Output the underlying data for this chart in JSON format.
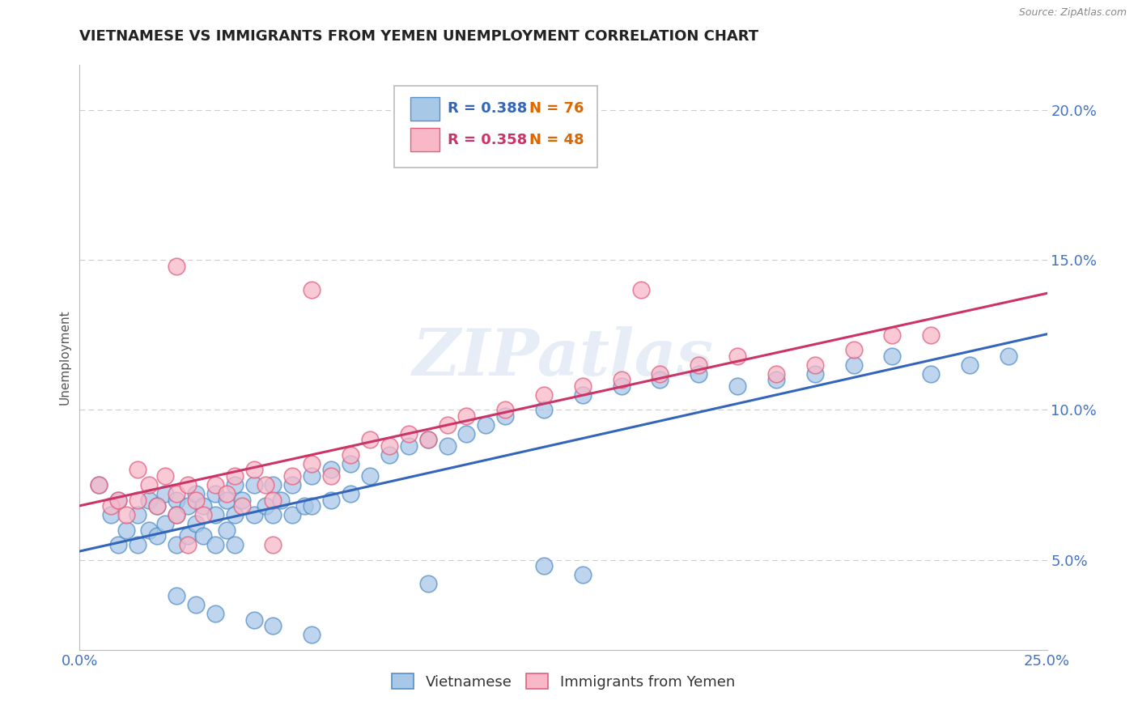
{
  "title": "VIETNAMESE VS IMMIGRANTS FROM YEMEN UNEMPLOYMENT CORRELATION CHART",
  "source_text": "Source: ZipAtlas.com",
  "ylabel": "Unemployment",
  "xlim": [
    0.0,
    0.25
  ],
  "ylim": [
    0.02,
    0.215
  ],
  "xticks": [
    0.0,
    0.05,
    0.1,
    0.15,
    0.2,
    0.25
  ],
  "xticklabels": [
    "0.0%",
    "",
    "",
    "",
    "",
    "25.0%"
  ],
  "yticks": [
    0.05,
    0.1,
    0.15,
    0.2
  ],
  "yticklabels": [
    "5.0%",
    "10.0%",
    "15.0%",
    "20.0%"
  ],
  "blue_color": "#a8c8e8",
  "blue_edge_color": "#5590c8",
  "pink_color": "#f8b8c8",
  "pink_edge_color": "#e06080",
  "blue_line_color": "#3366bb",
  "pink_line_color": "#cc3366",
  "legend_blue_R": "R = 0.388",
  "legend_blue_N": "N = 76",
  "legend_pink_R": "R = 0.358",
  "legend_pink_N": "N = 48",
  "legend_R_color_blue": "#3366bb",
  "legend_N_color": "#dd6600",
  "legend_R_color_pink": "#cc3366",
  "grid_color": "#cccccc",
  "background_color": "#ffffff",
  "title_color": "#222222",
  "axis_tick_color": "#4472c4",
  "watermark": "ZIPatlas",
  "source_color": "#888888",
  "blue_x": [
    0.005,
    0.008,
    0.01,
    0.01,
    0.012,
    0.015,
    0.015,
    0.018,
    0.018,
    0.02,
    0.02,
    0.022,
    0.022,
    0.025,
    0.025,
    0.025,
    0.028,
    0.028,
    0.03,
    0.03,
    0.032,
    0.032,
    0.035,
    0.035,
    0.035,
    0.038,
    0.038,
    0.04,
    0.04,
    0.04,
    0.042,
    0.045,
    0.045,
    0.048,
    0.05,
    0.05,
    0.052,
    0.055,
    0.055,
    0.058,
    0.06,
    0.06,
    0.065,
    0.065,
    0.07,
    0.07,
    0.075,
    0.08,
    0.085,
    0.09,
    0.095,
    0.1,
    0.105,
    0.11,
    0.12,
    0.13,
    0.14,
    0.15,
    0.16,
    0.17,
    0.18,
    0.19,
    0.2,
    0.21,
    0.22,
    0.23,
    0.24,
    0.12,
    0.13,
    0.09,
    0.025,
    0.03,
    0.035,
    0.045,
    0.05,
    0.06
  ],
  "blue_y": [
    0.075,
    0.065,
    0.07,
    0.055,
    0.06,
    0.065,
    0.055,
    0.07,
    0.06,
    0.068,
    0.058,
    0.072,
    0.062,
    0.07,
    0.065,
    0.055,
    0.068,
    0.058,
    0.072,
    0.062,
    0.068,
    0.058,
    0.072,
    0.065,
    0.055,
    0.07,
    0.06,
    0.075,
    0.065,
    0.055,
    0.07,
    0.075,
    0.065,
    0.068,
    0.075,
    0.065,
    0.07,
    0.075,
    0.065,
    0.068,
    0.078,
    0.068,
    0.08,
    0.07,
    0.082,
    0.072,
    0.078,
    0.085,
    0.088,
    0.09,
    0.088,
    0.092,
    0.095,
    0.098,
    0.1,
    0.105,
    0.108,
    0.11,
    0.112,
    0.108,
    0.11,
    0.112,
    0.115,
    0.118,
    0.112,
    0.115,
    0.118,
    0.048,
    0.045,
    0.042,
    0.038,
    0.035,
    0.032,
    0.03,
    0.028,
    0.025
  ],
  "pink_x": [
    0.005,
    0.008,
    0.01,
    0.012,
    0.015,
    0.015,
    0.018,
    0.02,
    0.022,
    0.025,
    0.025,
    0.028,
    0.03,
    0.032,
    0.035,
    0.038,
    0.04,
    0.042,
    0.045,
    0.048,
    0.05,
    0.055,
    0.06,
    0.065,
    0.07,
    0.075,
    0.08,
    0.085,
    0.09,
    0.095,
    0.1,
    0.11,
    0.12,
    0.13,
    0.14,
    0.15,
    0.16,
    0.17,
    0.18,
    0.19,
    0.2,
    0.21,
    0.22,
    0.025,
    0.028,
    0.145,
    0.05,
    0.06
  ],
  "pink_y": [
    0.075,
    0.068,
    0.07,
    0.065,
    0.08,
    0.07,
    0.075,
    0.068,
    0.078,
    0.072,
    0.065,
    0.075,
    0.07,
    0.065,
    0.075,
    0.072,
    0.078,
    0.068,
    0.08,
    0.075,
    0.07,
    0.078,
    0.082,
    0.078,
    0.085,
    0.09,
    0.088,
    0.092,
    0.09,
    0.095,
    0.098,
    0.1,
    0.105,
    0.108,
    0.11,
    0.112,
    0.115,
    0.118,
    0.112,
    0.115,
    0.12,
    0.125,
    0.125,
    0.148,
    0.055,
    0.14,
    0.055,
    0.14
  ],
  "blue_trend_x": [
    0.0,
    0.25
  ],
  "blue_trend_y": [
    0.065,
    0.118
  ],
  "pink_trend_x": [
    0.0,
    0.25
  ],
  "pink_trend_y": [
    0.075,
    0.132
  ]
}
